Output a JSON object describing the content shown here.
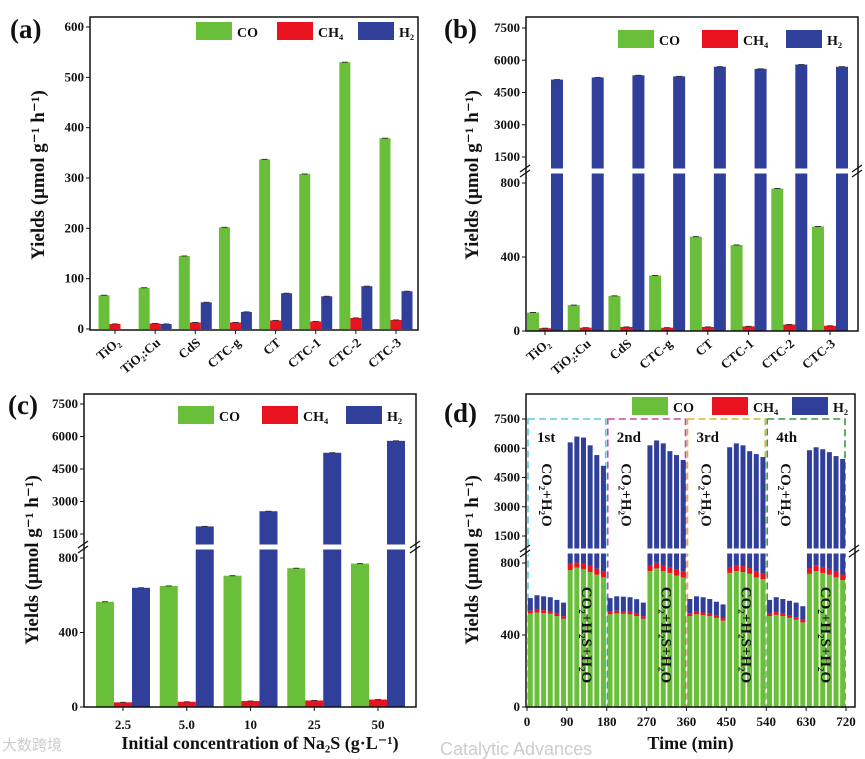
{
  "colors": {
    "CO": "#6abf3a",
    "CH4": "#e8131f",
    "H2": "#2f3f9a",
    "cycles": [
      "#5ec8e6",
      "#c8469b",
      "#e3b030",
      "#3a9a3a"
    ]
  },
  "legend": [
    "CO",
    "CH₄",
    "H₂"
  ],
  "watermarks": [
    "Catalytic Advances",
    "大数跨境"
  ],
  "chart_data": [
    {
      "panel": "(a)",
      "type": "bar",
      "ylabel": "Yields (μmol g⁻¹ h⁻¹)",
      "xlabel": "",
      "categories": [
        "TiO₂",
        "TiO₂:Cu",
        "CdS",
        "CTC-g",
        "CT",
        "CTC-1",
        "CTC-2",
        "CTC-3"
      ],
      "ylim": [
        0,
        600
      ],
      "yticks": [
        0,
        100,
        200,
        300,
        400,
        500,
        600
      ],
      "series": [
        {
          "name": "CO",
          "values": [
            67,
            82,
            145,
            202,
            337,
            308,
            530,
            379
          ]
        },
        {
          "name": "CH₄",
          "values": [
            10,
            11,
            13,
            13,
            17,
            15,
            22,
            18
          ]
        },
        {
          "name": "H₂",
          "values": [
            0,
            10,
            53,
            34,
            71,
            65,
            85,
            75
          ]
        }
      ],
      "legend_position": "top-right"
    },
    {
      "panel": "(b)",
      "type": "bar",
      "broken_axis": [
        800,
        1500
      ],
      "ylabel": "Yields (μmol g⁻¹ h⁻¹)",
      "xlabel": "",
      "categories": [
        "TiO₂",
        "TiO₂:Cu",
        "CdS",
        "CTC-g",
        "CT",
        "CTC-1",
        "CTC-2",
        "CTC-3"
      ],
      "ylim": [
        0,
        7500
      ],
      "yticks": [
        0,
        400,
        800,
        1500,
        3000,
        4500,
        6000,
        7500
      ],
      "series": [
        {
          "name": "CO",
          "values": [
            100,
            140,
            190,
            300,
            510,
            465,
            770,
            565
          ]
        },
        {
          "name": "CH₄",
          "values": [
            15,
            18,
            22,
            18,
            22,
            25,
            35,
            28
          ]
        },
        {
          "name": "H₂",
          "values": [
            5100,
            5200,
            5300,
            5250,
            5700,
            5600,
            5800,
            5700
          ]
        }
      ],
      "legend_position": "top-right"
    },
    {
      "panel": "(c)",
      "type": "bar",
      "broken_axis": [
        800,
        1500
      ],
      "ylabel": "Yields (μmol g⁻¹ h⁻¹)",
      "xlabel": "Initial concentration of Na₂S (g·L⁻¹)",
      "categories": [
        "2.5",
        "5.0",
        "10",
        "25",
        "50"
      ],
      "ylim": [
        0,
        7500
      ],
      "yticks": [
        0,
        400,
        800,
        1500,
        3000,
        4500,
        6000,
        7500
      ],
      "series": [
        {
          "name": "CO",
          "values": [
            565,
            650,
            705,
            745,
            770
          ]
        },
        {
          "name": "CH₄",
          "values": [
            25,
            28,
            32,
            35,
            40
          ]
        },
        {
          "name": "H₂",
          "values": [
            640,
            1850,
            2550,
            5250,
            5800
          ]
        }
      ],
      "legend_position": "top-right"
    },
    {
      "panel": "(d)",
      "type": "bar",
      "stacked": true,
      "broken_axis": [
        800,
        1500
      ],
      "ylabel": "Yields (μmol g⁻¹ h⁻¹)",
      "xlabel": "Time (min)",
      "xlim": [
        0,
        720
      ],
      "xticks": [
        0,
        90,
        180,
        270,
        360,
        450,
        540,
        630,
        720
      ],
      "ylim": [
        0,
        7500
      ],
      "yticks": [
        0,
        400,
        800,
        1500,
        3000,
        4500,
        6000,
        7500
      ],
      "bar_interval_min": 15,
      "cycles": [
        {
          "label": "1st",
          "condition_a": "CO₂+H₂O",
          "condition_b": "CO₂+H₂S+H₂O"
        },
        {
          "label": "2nd",
          "condition_a": "CO₂+H₂O",
          "condition_b": "CO₂+H₂S+H₂O"
        },
        {
          "label": "3rd",
          "condition_a": "CO₂+H₂O",
          "condition_b": "CO₂+H₂S+H₂O"
        },
        {
          "label": "4th",
          "condition_a": "CO₂+H₂O",
          "condition_b": "CO₂+H₂S+H₂O"
        }
      ],
      "series": [
        {
          "name": "CO",
          "values": [
            520,
            525,
            522,
            518,
            505,
            490,
            760,
            775,
            765,
            750,
            735,
            720,
            515,
            520,
            518,
            515,
            505,
            490,
            755,
            770,
            755,
            745,
            730,
            720,
            505,
            515,
            510,
            505,
            495,
            480,
            745,
            755,
            750,
            740,
            720,
            710,
            505,
            512,
            505,
            495,
            485,
            470,
            740,
            755,
            745,
            735,
            720,
            705
          ]
        },
        {
          "name": "CH₄",
          "values": [
            15,
            16,
            16,
            15,
            15,
            14,
            35,
            36,
            35,
            34,
            33,
            32,
            15,
            15,
            15,
            15,
            14,
            14,
            34,
            35,
            34,
            33,
            32,
            32,
            15,
            15,
            15,
            14,
            14,
            14,
            33,
            34,
            33,
            32,
            32,
            31,
            14,
            15,
            15,
            14,
            14,
            14,
            32,
            33,
            33,
            32,
            31,
            31
          ]
        },
        {
          "name": "H₂",
          "values": [
            70,
            80,
            77,
            77,
            75,
            76,
            5505,
            5789,
            5750,
            5366,
            4882,
            4348,
            75,
            80,
            80,
            80,
            80,
            76,
            5361,
            5595,
            5461,
            5072,
            4888,
            4648,
            80,
            85,
            85,
            81,
            76,
            76,
            5272,
            5461,
            5367,
            5078,
            4948,
            4809,
            76,
            83,
            80,
            81,
            81,
            76,
            5128,
            5262,
            5172,
            5033,
            4849,
            4714
          ]
        }
      ],
      "legend_position": "top-right"
    }
  ]
}
